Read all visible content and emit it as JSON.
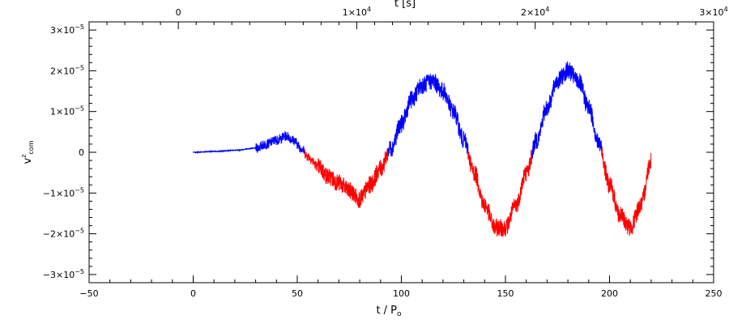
{
  "chart_data": {
    "type": "line",
    "title": "",
    "xlabel": "t / P",
    "xlabel_subscript": "o",
    "ylabel": "v",
    "ylabel_superscript": "z",
    "ylabel_subscript": "com",
    "top_xlabel": "t [s]",
    "xlim": [
      -50,
      250
    ],
    "ylim": [
      -3.2e-05,
      3.2e-05
    ],
    "x_ticks": [
      {
        "value": -50,
        "label": "−50"
      },
      {
        "value": 0,
        "label": "0"
      },
      {
        "value": 50,
        "label": "50"
      },
      {
        "value": 100,
        "label": "100"
      },
      {
        "value": 150,
        "label": "150"
      },
      {
        "value": 200,
        "label": "200"
      },
      {
        "value": 250,
        "label": "250"
      }
    ],
    "y_ticks": [
      {
        "value": -3e-05,
        "mant": "−3×10",
        "exp": "−5"
      },
      {
        "value": -2e-05,
        "mant": "−2×10",
        "exp": "−5"
      },
      {
        "value": -1e-05,
        "mant": "−1×10",
        "exp": "−5"
      },
      {
        "value": 0,
        "mant": "0",
        "exp": ""
      },
      {
        "value": 1e-05,
        "mant": "1×10",
        "exp": "−5"
      },
      {
        "value": 2e-05,
        "mant": "2×10",
        "exp": "−5"
      },
      {
        "value": 3e-05,
        "mant": "3×10",
        "exp": "−5"
      }
    ],
    "top_axis": {
      "xlim_seconds": [
        -5000,
        30000
      ],
      "ticks": [
        {
          "value": 0,
          "mant": "0",
          "exp": ""
        },
        {
          "value": 10000,
          "mant": "1×10",
          "exp": "4"
        },
        {
          "value": 20000,
          "mant": "2×10",
          "exp": "4"
        },
        {
          "value": 30000,
          "mant": "3×10",
          "exp": "4"
        }
      ]
    },
    "grid": false,
    "colors": {
      "positive": "#0000ff",
      "negative": "#ff0000",
      "axes": "#000000"
    },
    "series": [
      {
        "x": [
          0,
          10,
          20,
          30,
          35,
          40,
          45,
          48,
          52,
          55,
          60,
          65,
          70,
          75,
          80,
          85,
          90,
          95,
          100,
          105,
          110,
          115,
          120,
          125,
          130,
          135,
          140,
          145,
          150,
          155,
          160,
          165,
          170,
          175,
          180,
          185,
          190,
          195,
          200,
          205,
          210,
          215,
          220
        ],
        "y": [
          0,
          2e-07,
          5e-07,
          1e-06,
          2e-06,
          3e-06,
          4e-06,
          3e-06,
          1e-06,
          -1e-06,
          -3.5e-06,
          -6e-06,
          -7.5e-06,
          -9.5e-06,
          -1.15e-05,
          -8e-06,
          -4e-06,
          1e-06,
          7e-06,
          1.3e-05,
          1.65e-05,
          1.75e-05,
          1.5e-05,
          1e-05,
          3e-06,
          -5e-06,
          -1.3e-05,
          -1.85e-05,
          -1.85e-05,
          -1.3e-05,
          -5e-06,
          3e-06,
          1.1e-05,
          1.75e-05,
          2e-05,
          1.75e-05,
          1.1e-05,
          2e-06,
          -8e-06,
          -1.55e-05,
          -1.85e-05,
          -1.3e-05,
          -2e-06
        ]
      }
    ]
  }
}
